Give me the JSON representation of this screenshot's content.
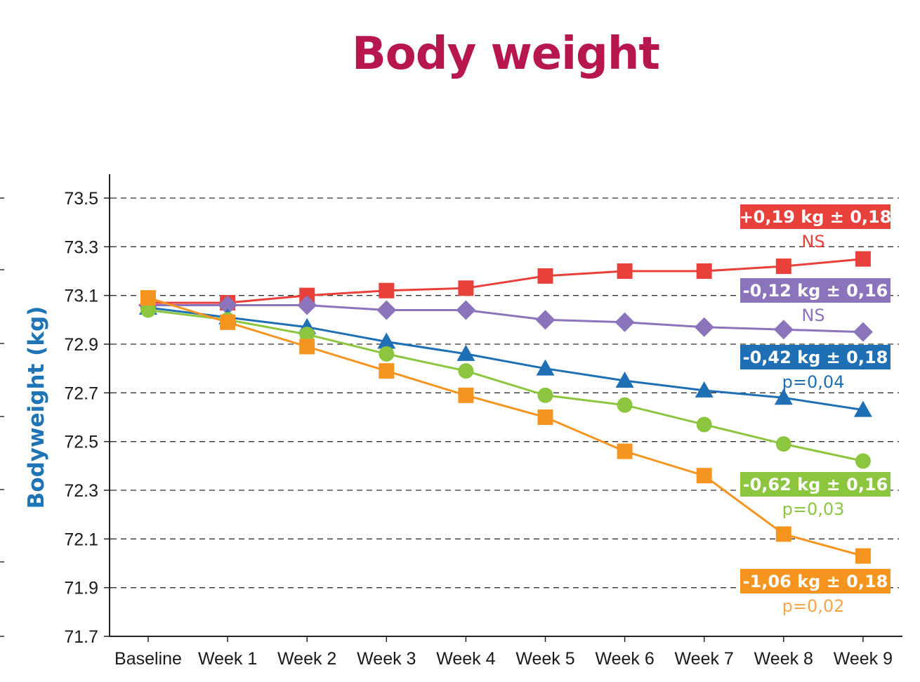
{
  "chart_data": {
    "type": "line",
    "title": "Body weight",
    "ylabel": "Bodyweight (kg)",
    "xlabel": "",
    "categories": [
      "Baseline",
      "Week 1",
      "Week 2",
      "Week 3",
      "Week 4",
      "Week 5",
      "Week 6",
      "Week 7",
      "Week 8",
      "Week 9"
    ],
    "yticks": [
      "73.5",
      "73.3",
      "73.1",
      "72.9",
      "72.7",
      "72.5",
      "72.3",
      "72.1",
      "71.9",
      "71.7"
    ],
    "ylim": [
      71.7,
      73.5
    ],
    "grid": "horizontal dashed",
    "series": [
      {
        "marker": "square",
        "color": "#e8403a",
        "values": [
          73.07,
          73.07,
          73.1,
          73.12,
          73.13,
          73.18,
          73.2,
          73.2,
          73.22,
          73.25
        ],
        "annotation": {
          "box": "+0,19 kg  ±  0,18",
          "sig": "NS",
          "sig_color": "#e8403a"
        }
      },
      {
        "marker": "diamond",
        "color": "#8c74bd",
        "values": [
          73.06,
          73.06,
          73.06,
          73.04,
          73.04,
          73.0,
          72.99,
          72.97,
          72.96,
          72.95
        ],
        "annotation": {
          "box": "-0,12 kg  ±  0,16",
          "sig": "NS",
          "sig_color": "#8c74bd"
        }
      },
      {
        "marker": "triangle",
        "color": "#1f6fb5",
        "values": [
          73.05,
          73.01,
          72.97,
          72.91,
          72.86,
          72.8,
          72.75,
          72.71,
          72.68,
          72.63
        ],
        "annotation": {
          "box": "-0,42 kg  ±  0,18",
          "sig": "p=0,04",
          "sig_color": "#1f6fb5"
        }
      },
      {
        "marker": "circle",
        "color": "#8cc63e",
        "values": [
          73.04,
          73.0,
          72.94,
          72.86,
          72.79,
          72.69,
          72.65,
          72.57,
          72.49,
          72.42
        ],
        "annotation": {
          "box": "-0,62 kg  ±  0,16",
          "sig": "p=0,03",
          "sig_color": "#8cc63e"
        }
      },
      {
        "marker": "square",
        "color": "#f5951f",
        "values": [
          73.09,
          72.99,
          72.89,
          72.79,
          72.69,
          72.6,
          72.46,
          72.36,
          72.12,
          72.03
        ],
        "annotation": {
          "box": "-1,06 kg  ±  0,18",
          "sig": "p=0,02",
          "sig_color": "#f5a64a"
        }
      }
    ]
  }
}
